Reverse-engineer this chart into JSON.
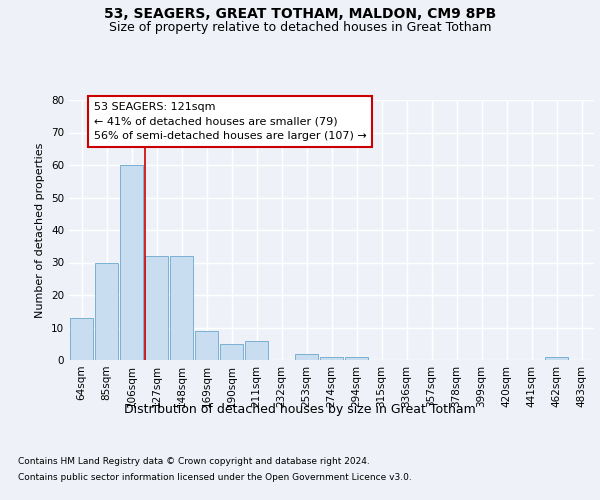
{
  "title1": "53, SEAGERS, GREAT TOTHAM, MALDON, CM9 8PB",
  "title2": "Size of property relative to detached houses in Great Totham",
  "xlabel": "Distribution of detached houses by size in Great Totham",
  "ylabel": "Number of detached properties",
  "categories": [
    "64sqm",
    "85sqm",
    "106sqm",
    "127sqm",
    "148sqm",
    "169sqm",
    "190sqm",
    "211sqm",
    "232sqm",
    "253sqm",
    "274sqm",
    "294sqm",
    "315sqm",
    "336sqm",
    "357sqm",
    "378sqm",
    "399sqm",
    "420sqm",
    "441sqm",
    "462sqm",
    "483sqm"
  ],
  "values": [
    13,
    30,
    60,
    32,
    32,
    9,
    5,
    6,
    0,
    2,
    1,
    1,
    0,
    0,
    0,
    0,
    0,
    0,
    0,
    1,
    0
  ],
  "bar_color": "#c8ddf0",
  "bar_edge_color": "#7ab0d4",
  "vline_x_index": 3,
  "vline_color": "#cc0000",
  "annotation_line1": "53 SEAGERS: 121sqm",
  "annotation_line2": "← 41% of detached houses are smaller (79)",
  "annotation_line3": "56% of semi-detached houses are larger (107) →",
  "annotation_box_color": "#ffffff",
  "annotation_box_edge": "#cc0000",
  "ylim": [
    0,
    80
  ],
  "yticks": [
    0,
    10,
    20,
    30,
    40,
    50,
    60,
    70,
    80
  ],
  "footnote1": "Contains HM Land Registry data © Crown copyright and database right 2024.",
  "footnote2": "Contains public sector information licensed under the Open Government Licence v3.0.",
  "bg_color": "#eef2f8",
  "plot_bg_color": "#eef2f8",
  "grid_color": "#ffffff",
  "title1_fontsize": 10,
  "title2_fontsize": 9,
  "axis_label_fontsize": 9,
  "ylabel_fontsize": 8,
  "tick_fontsize": 7.5,
  "annotation_fontsize": 8,
  "footnote_fontsize": 6.5
}
